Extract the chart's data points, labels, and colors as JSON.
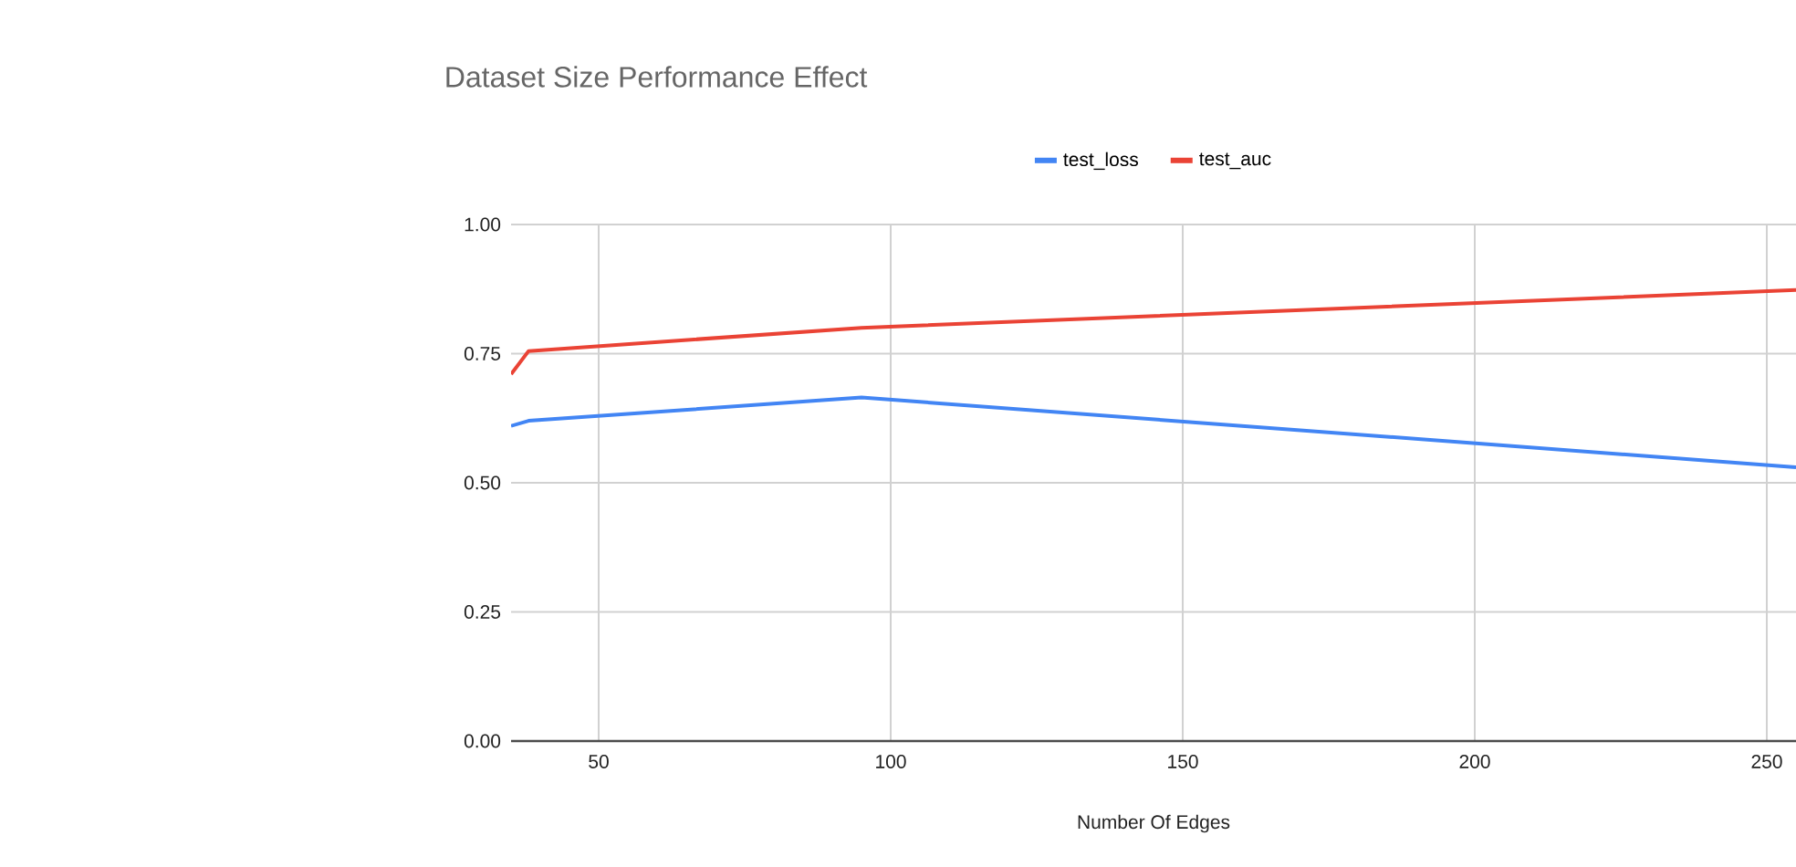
{
  "chart_data": {
    "type": "line",
    "title": "Dataset Size Performance Effect",
    "xlabel": "Number Of Edges",
    "series": [
      {
        "name": "test_loss",
        "color": "#4285f4",
        "x": [
          35,
          38,
          95,
          255
        ],
        "values": [
          0.61,
          0.62,
          0.665,
          0.53
        ]
      },
      {
        "name": "test_auc",
        "color": "#ea4335",
        "x": [
          35,
          38,
          95,
          255
        ],
        "values": [
          0.71,
          0.755,
          0.8,
          0.873
        ]
      }
    ],
    "xlim": [
      35,
      255
    ],
    "xticks": [
      50,
      100,
      150,
      200,
      250
    ],
    "ylim": [
      0,
      1
    ],
    "yticks": [
      {
        "value": 0,
        "label": "0.00"
      },
      {
        "value": 0.25,
        "label": "0.25"
      },
      {
        "value": 0.5,
        "label": "0.50"
      },
      {
        "value": 0.75,
        "label": "0.75"
      },
      {
        "value": 1,
        "label": "1.00"
      }
    ],
    "grid": true,
    "legend": "top",
    "marker": "none",
    "line_style": "solid"
  }
}
